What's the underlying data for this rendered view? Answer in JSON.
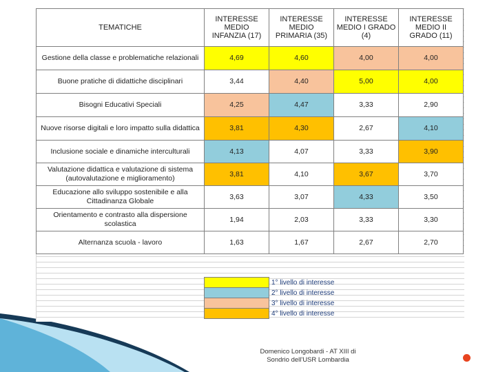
{
  "table": {
    "headers": [
      "TEMATICHE",
      "INTERESSE MEDIO INFANZIA (17)",
      "INTERESSE MEDIO PRIMARIA (35)",
      "INTERESSE MEDIO I GRADO (4)",
      "INTERESSE MEDIO II GRADO (11)"
    ],
    "rows": [
      {
        "label": "Gestione della classe e problematiche relazionali",
        "cells": [
          {
            "value": "4,69",
            "color": "yellow"
          },
          {
            "value": "4,60",
            "color": "yellow"
          },
          {
            "value": "4,00",
            "color": "peach"
          },
          {
            "value": "4,00",
            "color": "peach"
          }
        ]
      },
      {
        "label": "Buone pratiche di didattiche disciplinari",
        "cells": [
          {
            "value": "3,44",
            "color": "none"
          },
          {
            "value": "4,40",
            "color": "peach"
          },
          {
            "value": "5,00",
            "color": "yellow"
          },
          {
            "value": "4,00",
            "color": "yellow"
          }
        ]
      },
      {
        "label": "Bisogni Educativi Speciali",
        "cells": [
          {
            "value": "4,25",
            "color": "peach"
          },
          {
            "value": "4,47",
            "color": "blue"
          },
          {
            "value": "3,33",
            "color": "none"
          },
          {
            "value": "2,90",
            "color": "none"
          }
        ]
      },
      {
        "label": "Nuove risorse digitali e loro impatto sulla didattica",
        "cells": [
          {
            "value": "3,81",
            "color": "orange"
          },
          {
            "value": "4,30",
            "color": "orange"
          },
          {
            "value": "2,67",
            "color": "none"
          },
          {
            "value": "4,10",
            "color": "blue"
          }
        ]
      },
      {
        "label": "Inclusione sociale e dinamiche interculturali",
        "cells": [
          {
            "value": "4,13",
            "color": "blue"
          },
          {
            "value": "4,07",
            "color": "none"
          },
          {
            "value": "3,33",
            "color": "none"
          },
          {
            "value": "3,90",
            "color": "orange"
          }
        ]
      },
      {
        "label": "Valutazione didattica e valutazione di sistema (autovalutazione e miglioramento)",
        "cells": [
          {
            "value": "3,81",
            "color": "orange"
          },
          {
            "value": "4,10",
            "color": "none"
          },
          {
            "value": "3,67",
            "color": "orange"
          },
          {
            "value": "3,70",
            "color": "none"
          }
        ]
      },
      {
        "label": "Educazione allo sviluppo sostenibile e alla Cittadinanza Globale",
        "cells": [
          {
            "value": "3,63",
            "color": "none"
          },
          {
            "value": "3,07",
            "color": "none"
          },
          {
            "value": "4,33",
            "color": "blue"
          },
          {
            "value": "3,50",
            "color": "none"
          }
        ]
      },
      {
        "label": "Orientamento e contrasto alla dispersione scolastica",
        "cells": [
          {
            "value": "1,94",
            "color": "none"
          },
          {
            "value": "2,03",
            "color": "none"
          },
          {
            "value": "3,33",
            "color": "none"
          },
          {
            "value": "3,30",
            "color": "none"
          }
        ]
      },
      {
        "label": "Alternanza scuola - lavoro",
        "cells": [
          {
            "value": "1,63",
            "color": "none"
          },
          {
            "value": "1,67",
            "color": "none"
          },
          {
            "value": "2,67",
            "color": "none"
          },
          {
            "value": "2,70",
            "color": "none"
          }
        ]
      }
    ]
  },
  "legend": [
    {
      "color": "yellow",
      "label": "1° livello di interesse"
    },
    {
      "color": "blue",
      "label": "2° livello di interesse"
    },
    {
      "color": "peach",
      "label": "3° livello di interesse"
    },
    {
      "color": "orange",
      "label": "4° livello di interesse"
    }
  ],
  "colors": {
    "yellow": "#ffff00",
    "blue": "#92cddc",
    "peach": "#f8c39c",
    "orange": "#ffc000",
    "slide_accent": "#1b5e8a",
    "dot": "#e8441f"
  },
  "footer": {
    "line1": "Domenico Longobardi - AT XIII di",
    "line2": "Sondrio dell'USR Lombardia"
  }
}
